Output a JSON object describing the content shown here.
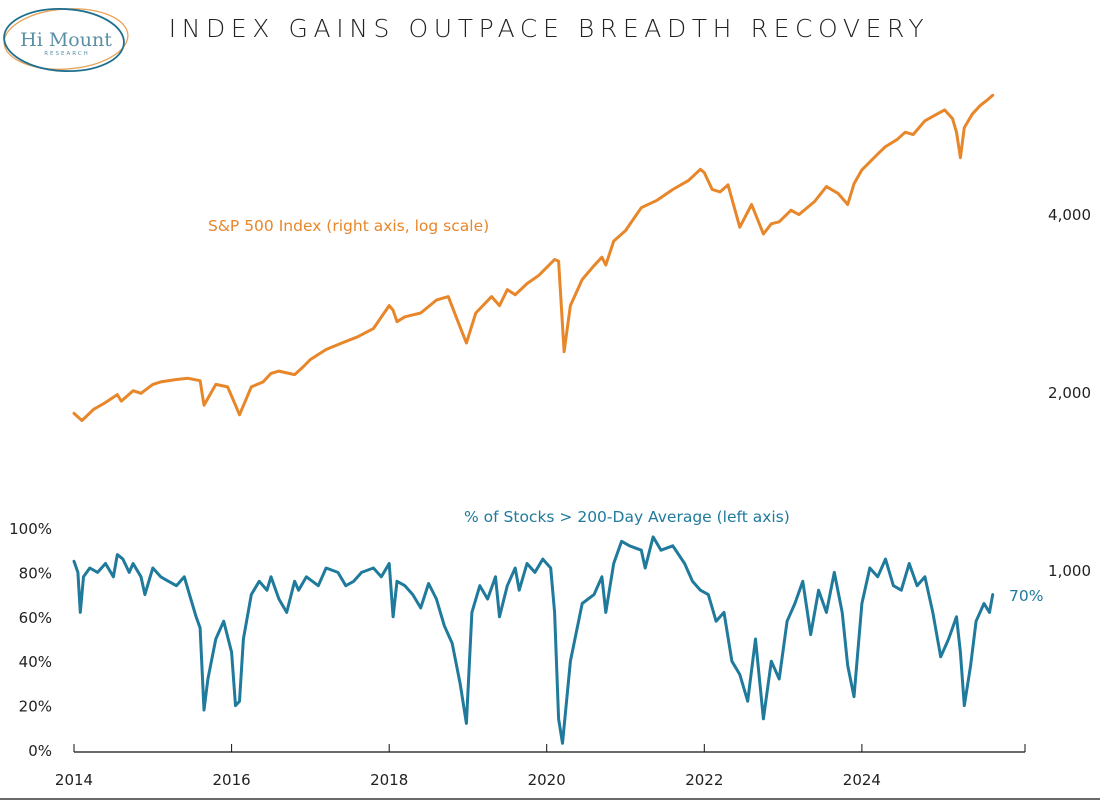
{
  "logo": {
    "name": "Hi Mount",
    "subtitle": "RESEARCH",
    "ring_outer_color": "#e8a257",
    "ring_inner_color": "#1f6f8f"
  },
  "chart_data": {
    "type": "line",
    "title": "INDEX GAINS OUTPACE BREADTH RECOVERY",
    "x_ticks": [
      "2014",
      "2016",
      "2018",
      "2020",
      "2022",
      "2024"
    ],
    "x_range": [
      2014,
      2025.7
    ],
    "left_axis": {
      "label": "% of Stocks > 200-Day Average",
      "ticks": [
        "0%",
        "20%",
        "40%",
        "60%",
        "80%",
        "100%"
      ],
      "range": [
        0,
        100
      ]
    },
    "right_axis": {
      "label": "S&P 500 Index",
      "scale": "log",
      "ticks": [
        "1,000",
        "2,000",
        "4,000"
      ],
      "tick_values": [
        1000,
        2000,
        4000
      ]
    },
    "grid": false,
    "annotations": {
      "sp500": "S&P 500 Index (right axis, log scale)",
      "breadth": "% of Stocks > 200-Day Average (left axis)",
      "last_breadth": "70%"
    },
    "series": [
      {
        "name": "S&P 500 Index",
        "axis": "right",
        "color": "#e8862a",
        "x": [
          2014.0,
          2014.1,
          2014.25,
          2014.4,
          2014.55,
          2014.6,
          2014.75,
          2014.85,
          2015.0,
          2015.1,
          2015.3,
          2015.45,
          2015.6,
          2015.65,
          2015.8,
          2015.95,
          2016.05,
          2016.1,
          2016.25,
          2016.4,
          2016.5,
          2016.6,
          2016.8,
          2016.9,
          2017.0,
          2017.2,
          2017.4,
          2017.6,
          2017.8,
          2018.0,
          2018.05,
          2018.1,
          2018.2,
          2018.4,
          2018.6,
          2018.75,
          2018.85,
          2018.98,
          2019.1,
          2019.3,
          2019.4,
          2019.5,
          2019.6,
          2019.75,
          2019.9,
          2020.05,
          2020.1,
          2020.15,
          2020.22,
          2020.3,
          2020.45,
          2020.6,
          2020.7,
          2020.75,
          2020.85,
          2021.0,
          2021.2,
          2021.4,
          2021.6,
          2021.8,
          2021.95,
          2022.0,
          2022.1,
          2022.2,
          2022.3,
          2022.45,
          2022.6,
          2022.75,
          2022.85,
          2022.95,
          2023.1,
          2023.2,
          2023.4,
          2023.55,
          2023.7,
          2023.82,
          2023.9,
          2024.0,
          2024.2,
          2024.3,
          2024.45,
          2024.55,
          2024.65,
          2024.8,
          2024.95,
          2025.05,
          2025.15,
          2025.2,
          2025.25,
          2025.3,
          2025.4,
          2025.5,
          2025.6,
          2025.66
        ],
        "values": [
          1840,
          1790,
          1870,
          1920,
          1980,
          1930,
          2010,
          1990,
          2060,
          2080,
          2100,
          2110,
          2090,
          1900,
          2060,
          2040,
          1900,
          1830,
          2040,
          2080,
          2150,
          2170,
          2140,
          2200,
          2270,
          2360,
          2420,
          2480,
          2560,
          2800,
          2750,
          2630,
          2680,
          2720,
          2860,
          2900,
          2680,
          2420,
          2720,
          2900,
          2800,
          2980,
          2920,
          3050,
          3150,
          3300,
          3350,
          3330,
          2340,
          2800,
          3100,
          3270,
          3380,
          3280,
          3600,
          3750,
          4100,
          4220,
          4400,
          4560,
          4760,
          4700,
          4400,
          4360,
          4480,
          3800,
          4150,
          3700,
          3850,
          3880,
          4060,
          3990,
          4200,
          4450,
          4330,
          4150,
          4500,
          4750,
          5050,
          5200,
          5350,
          5500,
          5450,
          5750,
          5900,
          6000,
          5800,
          5500,
          4980,
          5600,
          5900,
          6100,
          6250,
          6350
        ]
      },
      {
        "name": "% of Stocks > 200-Day Average",
        "axis": "left",
        "color": "#1f7a9c",
        "x": [
          2014.0,
          2014.05,
          2014.08,
          2014.12,
          2014.2,
          2014.3,
          2014.4,
          2014.5,
          2014.55,
          2014.62,
          2014.7,
          2014.75,
          2014.85,
          2014.9,
          2015.0,
          2015.1,
          2015.2,
          2015.3,
          2015.4,
          2015.45,
          2015.55,
          2015.6,
          2015.65,
          2015.7,
          2015.8,
          2015.9,
          2016.0,
          2016.05,
          2016.1,
          2016.15,
          2016.25,
          2016.35,
          2016.45,
          2016.5,
          2016.6,
          2016.7,
          2016.8,
          2016.85,
          2016.95,
          2017.1,
          2017.2,
          2017.35,
          2017.45,
          2017.55,
          2017.65,
          2017.8,
          2017.9,
          2018.0,
          2018.05,
          2018.1,
          2018.2,
          2018.3,
          2018.4,
          2018.5,
          2018.6,
          2018.7,
          2018.8,
          2018.9,
          2018.98,
          2019.05,
          2019.15,
          2019.25,
          2019.35,
          2019.4,
          2019.5,
          2019.6,
          2019.65,
          2019.75,
          2019.85,
          2019.95,
          2020.05,
          2020.1,
          2020.15,
          2020.2,
          2020.3,
          2020.45,
          2020.6,
          2020.7,
          2020.75,
          2020.85,
          2020.95,
          2021.05,
          2021.2,
          2021.25,
          2021.35,
          2021.45,
          2021.6,
          2021.75,
          2021.85,
          2021.95,
          2022.05,
          2022.15,
          2022.25,
          2022.35,
          2022.45,
          2022.55,
          2022.65,
          2022.75,
          2022.85,
          2022.95,
          2023.05,
          2023.15,
          2023.25,
          2023.35,
          2023.45,
          2023.55,
          2023.65,
          2023.75,
          2023.82,
          2023.9,
          2024.0,
          2024.1,
          2024.2,
          2024.3,
          2024.4,
          2024.5,
          2024.6,
          2024.7,
          2024.8,
          2024.9,
          2025.0,
          2025.1,
          2025.2,
          2025.25,
          2025.3,
          2025.38,
          2025.45,
          2025.55,
          2025.62,
          2025.66
        ],
        "values": [
          85,
          80,
          62,
          78,
          82,
          80,
          84,
          78,
          88,
          86,
          80,
          84,
          78,
          70,
          82,
          78,
          76,
          74,
          78,
          72,
          60,
          55,
          18,
          32,
          50,
          58,
          44,
          20,
          22,
          50,
          70,
          76,
          72,
          78,
          68,
          62,
          76,
          72,
          78,
          74,
          82,
          80,
          74,
          76,
          80,
          82,
          78,
          84,
          60,
          76,
          74,
          70,
          64,
          75,
          68,
          56,
          48,
          30,
          12,
          62,
          74,
          68,
          78,
          60,
          74,
          82,
          72,
          84,
          80,
          86,
          82,
          62,
          14,
          3,
          40,
          66,
          70,
          78,
          62,
          84,
          94,
          92,
          90,
          82,
          96,
          90,
          92,
          84,
          76,
          72,
          70,
          58,
          62,
          40,
          34,
          22,
          50,
          14,
          40,
          32,
          58,
          66,
          76,
          52,
          72,
          62,
          80,
          62,
          38,
          24,
          66,
          82,
          78,
          86,
          74,
          72,
          84,
          74,
          78,
          62,
          42,
          50,
          60,
          44,
          20,
          38,
          58,
          66,
          62,
          70
        ]
      }
    ]
  }
}
